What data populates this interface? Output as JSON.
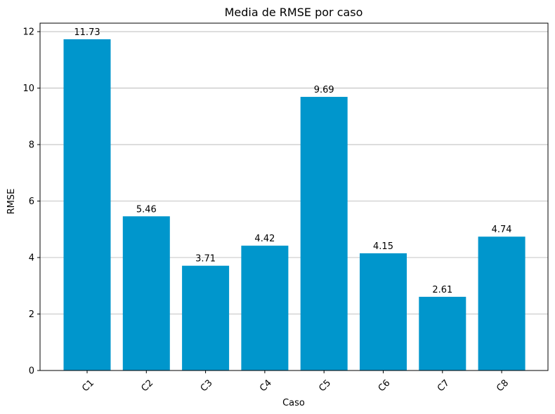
{
  "chart_data": {
    "type": "bar",
    "title": "Media de RMSE por caso",
    "xlabel": "Caso",
    "ylabel": "RMSE",
    "categories": [
      "C1",
      "C2",
      "C3",
      "C4",
      "C5",
      "C6",
      "C7",
      "C8"
    ],
    "values": [
      11.73,
      5.46,
      3.71,
      4.42,
      9.69,
      4.15,
      2.61,
      4.74
    ],
    "value_labels": [
      "11.73",
      "5.46",
      "3.71",
      "4.42",
      "9.69",
      "4.15",
      "2.61",
      "4.74"
    ],
    "ylim": [
      0,
      12.3
    ],
    "yticks": [
      0,
      2,
      4,
      6,
      8,
      10,
      12
    ],
    "ytick_labels": [
      "0",
      "2",
      "4",
      "6",
      "8",
      "10",
      "12"
    ],
    "grid": "horizontal",
    "bar_color": "#0096cc",
    "xtick_rotation": 45
  }
}
